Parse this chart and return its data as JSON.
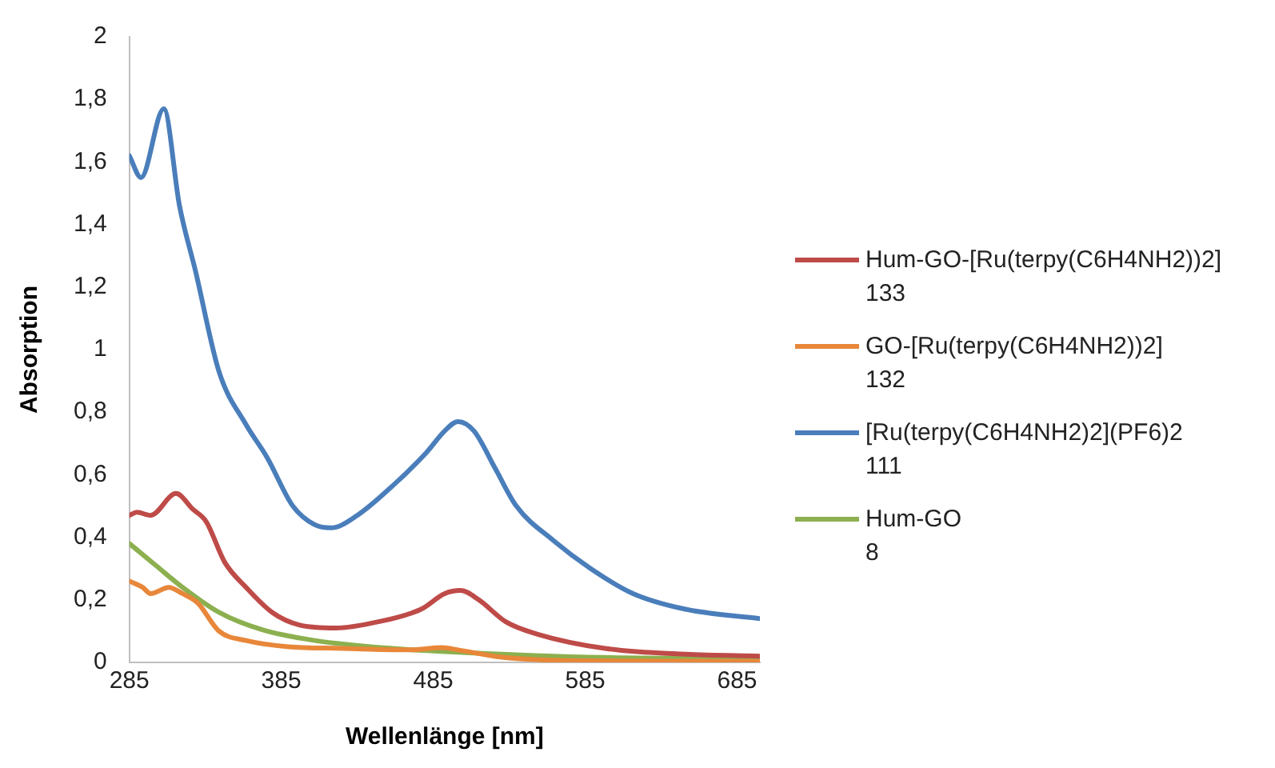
{
  "chart_data": {
    "type": "line",
    "xlabel": "Wellenlänge [nm]",
    "ylabel": "Absorption",
    "xlim": [
      285,
      700
    ],
    "ylim": [
      0,
      2
    ],
    "xticks": [
      285,
      385,
      485,
      585,
      685
    ],
    "yticks": [
      0,
      {
        "value": 0.2,
        "label": "0,2"
      },
      {
        "value": 0.4,
        "label": "0,4"
      },
      {
        "value": 0.6,
        "label": "0,6"
      },
      {
        "value": 0.8,
        "label": "0,8"
      },
      1,
      {
        "value": 1.2,
        "label": "1,2"
      },
      {
        "value": 1.4,
        "label": "1,4"
      },
      {
        "value": 1.6,
        "label": "1,6"
      },
      {
        "value": 1.8,
        "label": "1,8"
      },
      2
    ],
    "grid": false,
    "legend": "right",
    "marker": "none",
    "line_style": "solid",
    "series": [
      {
        "name": "Hum-GO-[Ru(terpy(C6H4NH2))2]\n133",
        "color": "#be4b48",
        "x": [
          285,
          290,
          299,
          315.7,
          326.7,
          335.6,
          347.8,
          361.8,
          379,
          396.7,
          421,
          449,
          477,
          492.6,
          503,
          515,
          532.7,
          553.7,
          599,
          651,
          700
        ],
        "values": [
          0.47,
          0.48,
          0.47,
          0.54,
          0.49,
          0.45,
          0.32,
          0.24,
          0.16,
          0.12,
          0.11,
          0.13,
          0.17,
          0.22,
          0.23,
          0.2,
          0.13,
          0.09,
          0.044,
          0.026,
          0.02
        ]
      },
      {
        "name": "GO-[Ru(terpy(C6H4NH2))2]\n132",
        "color": "#e8873a",
        "x": [
          285,
          293.7,
          299,
          311,
          320,
          330,
          344,
          361.8,
          389.7,
          424.6,
          470,
          490.9,
          501.3,
          529,
          581.6,
          700
        ],
        "values": [
          0.26,
          0.24,
          0.22,
          0.24,
          0.22,
          0.19,
          0.1,
          0.07,
          0.05,
          0.045,
          0.04,
          0.047,
          0.04,
          0.017,
          0.005,
          0.003
        ]
      },
      {
        "name": "[Ru(terpy(C6H4NH2)2](PF6)2\n111",
        "color": "#4a7ebb",
        "x": [
          285,
          292.7,
          307.7,
          318,
          328.6,
          344,
          361.8,
          375.7,
          392.6,
          407,
          417.6,
          435,
          459.5,
          480.4,
          492.6,
          501.3,
          511.8,
          525.8,
          539.7,
          564,
          588.6,
          616.5,
          651,
          700
        ],
        "values": [
          1.62,
          1.55,
          1.77,
          1.46,
          1.25,
          0.93,
          0.76,
          0.655,
          0.5,
          0.44,
          0.43,
          0.47,
          0.57,
          0.67,
          0.74,
          0.77,
          0.74,
          0.62,
          0.5,
          0.39,
          0.3,
          0.22,
          0.17,
          0.14
        ]
      },
      {
        "name": "Hum-GO\n8",
        "color": "#8cb04f",
        "x": [
          285,
          302.4,
          320,
          344,
          372,
          407,
          459.5,
          512,
          581.6,
          700
        ],
        "values": [
          0.38,
          0.31,
          0.24,
          0.16,
          0.105,
          0.07,
          0.044,
          0.03,
          0.017,
          0.012
        ]
      }
    ]
  }
}
